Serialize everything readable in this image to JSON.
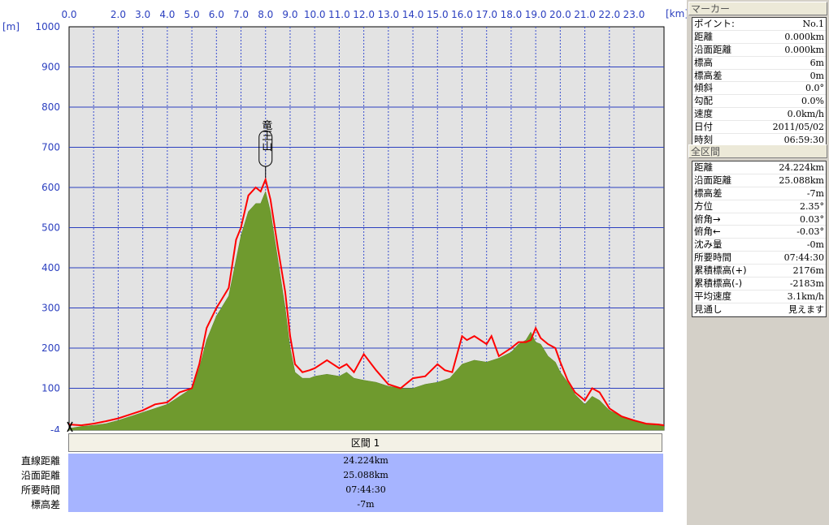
{
  "chart_data": {
    "type": "area",
    "x_unit": "[km]",
    "y_unit": "[m]",
    "xlim": [
      0,
      24.224
    ],
    "ylim": [
      -4,
      1000
    ],
    "x_ticks": [
      "0.0",
      "2.0",
      "3.0",
      "4.0",
      "5.0",
      "6.0",
      "7.0",
      "8.0",
      "9.0",
      "10.0",
      "11.0",
      "12.0",
      "13.0",
      "14.0",
      "15.0",
      "16.0",
      "17.0",
      "18.0",
      "19.0",
      "20.0",
      "21.0",
      "22.0",
      "23.0"
    ],
    "y_ticks": [
      "1000",
      "900",
      "800",
      "700",
      "600",
      "500",
      "400",
      "300",
      "200",
      "100",
      "-4"
    ],
    "grid": true,
    "annotation": {
      "label": "竜王山",
      "x": 8.0,
      "y": 620
    },
    "series": [
      {
        "color": "#6f9a2e",
        "x": [
          0,
          0.5,
          1,
          1.5,
          2,
          2.5,
          3,
          3.5,
          4,
          4.5,
          5,
          5.3,
          5.6,
          6,
          6.2,
          6.5,
          6.8,
          7,
          7.3,
          7.6,
          7.8,
          8,
          8.2,
          8.5,
          8.8,
          9,
          9.2,
          9.5,
          9.8,
          10,
          10.5,
          11,
          11.3,
          11.6,
          12,
          12.5,
          13,
          13.5,
          14,
          14.5,
          15,
          15.5,
          16,
          16.5,
          17,
          17.5,
          18,
          18.3,
          18.6,
          18.8,
          19,
          19.2,
          19.5,
          19.8,
          20,
          20.3,
          20.6,
          21,
          21.3,
          21.6,
          22,
          22.5,
          23,
          23.5,
          24,
          24.224
        ],
        "y": [
          0,
          5,
          8,
          12,
          20,
          30,
          40,
          50,
          60,
          80,
          100,
          150,
          220,
          280,
          300,
          330,
          420,
          480,
          540,
          560,
          560,
          590,
          540,
          420,
          300,
          200,
          140,
          125,
          125,
          130,
          135,
          130,
          140,
          125,
          120,
          115,
          105,
          100,
          100,
          110,
          115,
          125,
          160,
          170,
          165,
          175,
          190,
          210,
          220,
          240,
          215,
          210,
          180,
          165,
          140,
          115,
          85,
          60,
          80,
          70,
          45,
          30,
          20,
          12,
          8,
          5
        ]
      },
      {
        "color": "#ff0000",
        "x": [
          0,
          0.5,
          1,
          1.5,
          2,
          2.5,
          3,
          3.5,
          4,
          4.5,
          5,
          5.3,
          5.6,
          6,
          6.2,
          6.5,
          6.8,
          7,
          7.3,
          7.6,
          7.8,
          8,
          8.2,
          8.5,
          8.8,
          9,
          9.2,
          9.5,
          9.8,
          10,
          10.5,
          11,
          11.3,
          11.6,
          12,
          12.5,
          13,
          13.5,
          14,
          14.5,
          15,
          15.3,
          15.6,
          16,
          16.2,
          16.5,
          17,
          17.2,
          17.5,
          18,
          18.3,
          18.6,
          18.8,
          19,
          19.2,
          19.5,
          19.8,
          20,
          20.3,
          20.6,
          21,
          21.3,
          21.6,
          22,
          22.5,
          23,
          23.5,
          24,
          24.224
        ],
        "y": [
          10,
          8,
          12,
          18,
          25,
          35,
          45,
          60,
          65,
          90,
          100,
          160,
          250,
          300,
          320,
          350,
          470,
          500,
          580,
          600,
          590,
          620,
          570,
          450,
          340,
          230,
          160,
          140,
          145,
          150,
          170,
          150,
          160,
          140,
          185,
          145,
          110,
          100,
          125,
          130,
          160,
          145,
          140,
          230,
          220,
          230,
          210,
          230,
          180,
          200,
          215,
          215,
          220,
          250,
          225,
          210,
          200,
          165,
          120,
          90,
          70,
          100,
          90,
          50,
          30,
          20,
          12,
          10,
          8
        ]
      }
    ]
  },
  "summary": {
    "header": "区間 1",
    "rows": [
      {
        "label": "直線距離",
        "value": "24.224km"
      },
      {
        "label": "沿面距離",
        "value": "25.088km"
      },
      {
        "label": "所要時間",
        "value": "07:44:30"
      },
      {
        "label": "標高差",
        "value": "-7m"
      }
    ]
  },
  "marker_panel": {
    "title": "マーカー",
    "rows": [
      {
        "k": "ポイント:",
        "v": "No.1"
      },
      {
        "k": "距離",
        "v": "0.000km"
      },
      {
        "k": "沿面距離",
        "v": "0.000km"
      },
      {
        "k": "標高",
        "v": "6m"
      },
      {
        "k": "標高差",
        "v": "0m"
      },
      {
        "k": "傾斜",
        "v": "0.0°"
      },
      {
        "k": "勾配",
        "v": "0.0%"
      },
      {
        "k": "速度",
        "v": "0.0km/h"
      },
      {
        "k": "日付",
        "v": "2011/05/02"
      },
      {
        "k": "時刻",
        "v": "06:59:30"
      }
    ]
  },
  "section_panel": {
    "title": "全区間",
    "rows": [
      {
        "k": "距離",
        "v": "24.224km"
      },
      {
        "k": "沿面距離",
        "v": "25.088km"
      },
      {
        "k": "標高差",
        "v": "-7m"
      },
      {
        "k": "方位",
        "v": "2.35°"
      },
      {
        "k": "俯角→",
        "v": "0.03°"
      },
      {
        "k": "俯角←",
        "v": "-0.03°"
      },
      {
        "k": "沈み量",
        "v": "-0m"
      },
      {
        "k": "所要時間",
        "v": "07:44:30"
      },
      {
        "k": "累積標高(+)",
        "v": "2176m"
      },
      {
        "k": "累積標高(-)",
        "v": "-2183m"
      },
      {
        "k": "平均速度",
        "v": "3.1km/h"
      },
      {
        "k": "見通し",
        "v": "見えます"
      }
    ]
  }
}
